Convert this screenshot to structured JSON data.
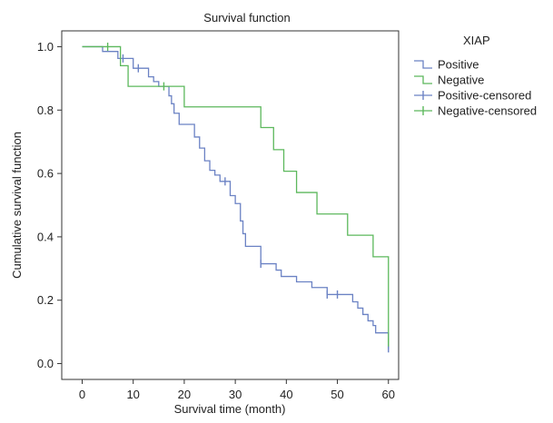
{
  "chart_data": {
    "type": "line",
    "title": "Survival function",
    "xlabel": "Survival time (month)",
    "ylabel": "Cumulative survival function",
    "xlim": [
      -4,
      62
    ],
    "ylim": [
      -0.05,
      1.05
    ],
    "x_ticks": [
      0,
      10,
      20,
      30,
      40,
      50,
      60
    ],
    "y_ticks": [
      0.0,
      0.2,
      0.4,
      0.6,
      0.8,
      1.0
    ],
    "grid": false,
    "legend_title": "XIAP",
    "legend_placement": "right",
    "series": [
      {
        "name": "Positive",
        "color": "#6b82c4",
        "step": true,
        "points": [
          [
            0,
            1.0
          ],
          [
            4,
            1.0
          ],
          [
            4,
            0.985
          ],
          [
            7,
            0.985
          ],
          [
            7,
            0.963
          ],
          [
            10,
            0.963
          ],
          [
            10,
            0.932
          ],
          [
            13,
            0.932
          ],
          [
            13,
            0.905
          ],
          [
            14,
            0.905
          ],
          [
            14,
            0.89
          ],
          [
            15,
            0.89
          ],
          [
            15,
            0.875
          ],
          [
            17,
            0.875
          ],
          [
            17,
            0.845
          ],
          [
            17.5,
            0.845
          ],
          [
            17.5,
            0.82
          ],
          [
            18,
            0.82
          ],
          [
            18,
            0.79
          ],
          [
            19,
            0.79
          ],
          [
            19,
            0.755
          ],
          [
            22,
            0.755
          ],
          [
            22,
            0.715
          ],
          [
            23,
            0.715
          ],
          [
            23,
            0.68
          ],
          [
            24,
            0.68
          ],
          [
            24,
            0.64
          ],
          [
            25,
            0.64
          ],
          [
            25,
            0.61
          ],
          [
            26,
            0.61
          ],
          [
            26,
            0.595
          ],
          [
            27,
            0.595
          ],
          [
            27,
            0.575
          ],
          [
            29,
            0.575
          ],
          [
            29,
            0.53
          ],
          [
            30,
            0.53
          ],
          [
            30,
            0.505
          ],
          [
            31,
            0.505
          ],
          [
            31,
            0.45
          ],
          [
            31.5,
            0.45
          ],
          [
            31.5,
            0.41
          ],
          [
            32,
            0.41
          ],
          [
            32,
            0.37
          ],
          [
            35,
            0.37
          ],
          [
            35,
            0.315
          ],
          [
            38,
            0.315
          ],
          [
            38,
            0.295
          ],
          [
            39,
            0.295
          ],
          [
            39,
            0.275
          ],
          [
            42,
            0.275
          ],
          [
            42,
            0.258
          ],
          [
            45,
            0.258
          ],
          [
            45,
            0.24
          ],
          [
            48,
            0.24
          ],
          [
            48,
            0.218
          ],
          [
            53,
            0.218
          ],
          [
            53,
            0.195
          ],
          [
            54,
            0.195
          ],
          [
            54,
            0.175
          ],
          [
            55,
            0.175
          ],
          [
            55,
            0.155
          ],
          [
            56,
            0.155
          ],
          [
            56,
            0.135
          ],
          [
            57,
            0.135
          ],
          [
            57,
            0.12
          ],
          [
            57.5,
            0.12
          ],
          [
            57.5,
            0.097
          ],
          [
            60,
            0.097
          ],
          [
            60,
            0.048
          ]
        ]
      },
      {
        "name": "Negative",
        "color": "#5cb85c",
        "step": true,
        "points": [
          [
            0,
            1.0
          ],
          [
            7.5,
            1.0
          ],
          [
            7.5,
            0.94
          ],
          [
            9,
            0.94
          ],
          [
            9,
            0.875
          ],
          [
            20,
            0.875
          ],
          [
            20,
            0.81
          ],
          [
            35,
            0.81
          ],
          [
            35,
            0.745
          ],
          [
            37.5,
            0.745
          ],
          [
            37.5,
            0.675
          ],
          [
            39.5,
            0.675
          ],
          [
            39.5,
            0.607
          ],
          [
            42,
            0.607
          ],
          [
            42,
            0.54
          ],
          [
            46,
            0.54
          ],
          [
            46,
            0.472
          ],
          [
            52,
            0.472
          ],
          [
            52,
            0.405
          ],
          [
            57,
            0.405
          ],
          [
            57,
            0.337
          ],
          [
            60,
            0.337
          ],
          [
            60,
            0.067
          ]
        ]
      }
    ],
    "censored": [
      {
        "name": "Positive-censored",
        "color": "#6b82c4",
        "points": [
          [
            8,
            0.963
          ],
          [
            11,
            0.932
          ],
          [
            28,
            0.575
          ],
          [
            35,
            0.315
          ],
          [
            48,
            0.218
          ],
          [
            50,
            0.218
          ],
          [
            60,
            0.048
          ]
        ]
      },
      {
        "name": "Negative-censored",
        "color": "#5cb85c",
        "points": [
          [
            5,
            1.0
          ],
          [
            16,
            0.875
          ],
          [
            60,
            0.067
          ]
        ]
      }
    ]
  }
}
